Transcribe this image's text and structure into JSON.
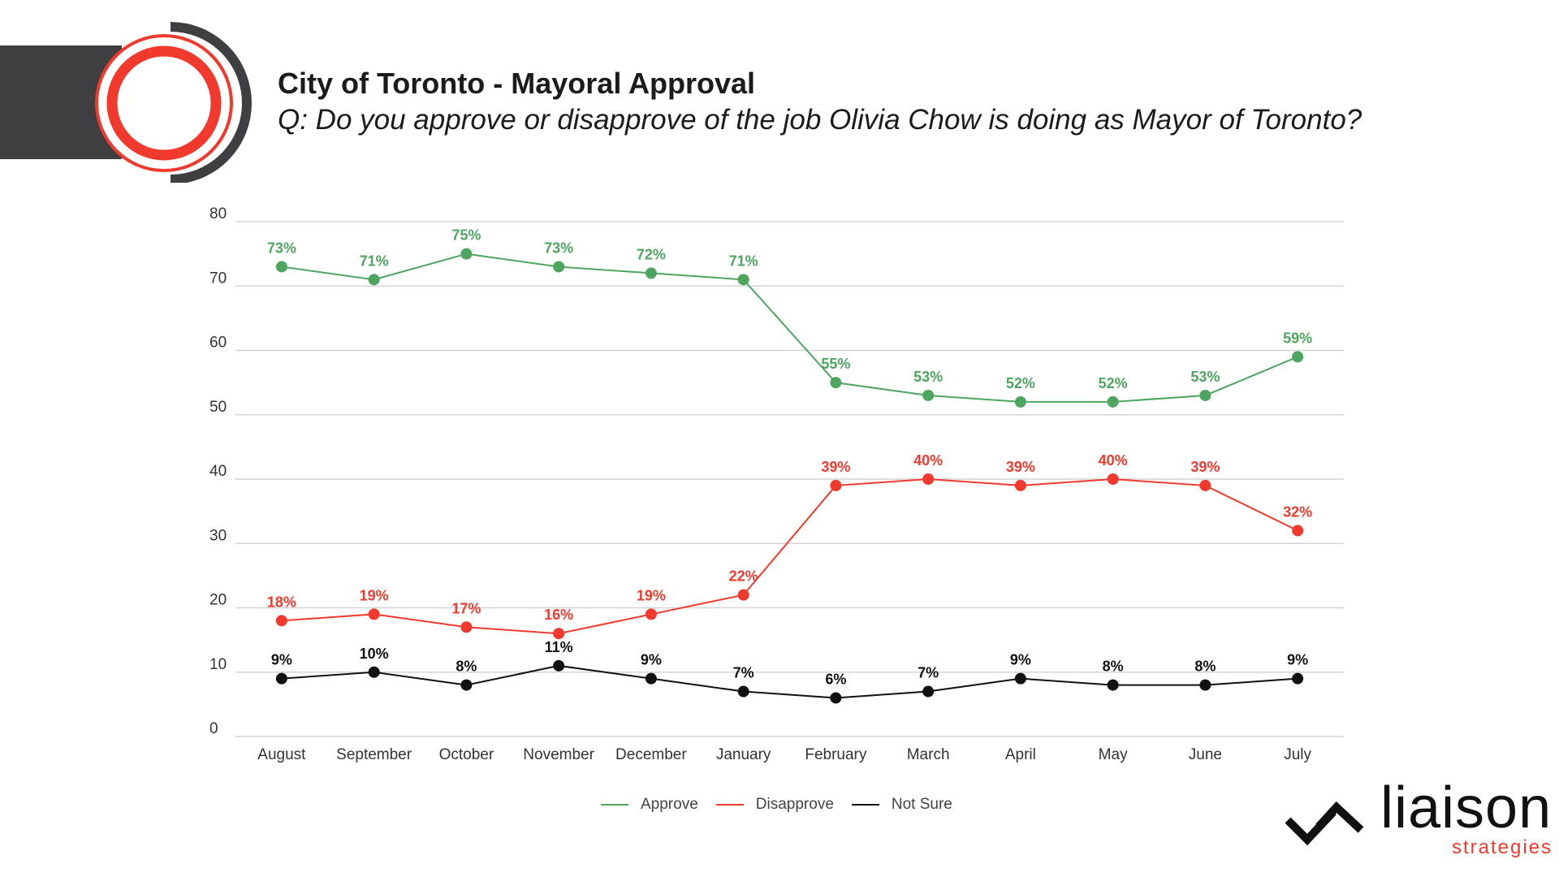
{
  "header": {
    "title": "City of Toronto - Mayoral Approval",
    "subtitle": "Q: Do you approve or disapprove of the job Olivia Chow is doing as Mayor of Toronto?"
  },
  "brand": {
    "name": "liaison",
    "sub": "strategies"
  },
  "colors": {
    "approve": "#4ea55f",
    "disapprove": "#f13a2d",
    "not_sure": "#111111",
    "grid": "#d4d4d4",
    "axis_text": "#333333"
  },
  "chart_data": {
    "type": "line",
    "categories": [
      "August",
      "September",
      "October",
      "November",
      "December",
      "January",
      "February",
      "March",
      "April",
      "May",
      "June",
      "July"
    ],
    "ylim": [
      0,
      80
    ],
    "yticks": [
      0,
      10,
      20,
      30,
      40,
      50,
      60,
      70,
      80
    ],
    "grid": true,
    "legend_position": "bottom",
    "series": [
      {
        "name": "Approve",
        "color": "#4ea55f",
        "values": [
          73,
          71,
          75,
          73,
          72,
          71,
          55,
          53,
          52,
          52,
          53,
          59
        ],
        "labels": [
          "73%",
          "71%",
          "75%",
          "73%",
          "72%",
          "71%",
          "55%",
          "53%",
          "52%",
          "52%",
          "53%",
          "59%"
        ]
      },
      {
        "name": "Disapprove",
        "color": "#f13a2d",
        "values": [
          18,
          19,
          17,
          16,
          19,
          22,
          39,
          40,
          39,
          40,
          39,
          32
        ],
        "labels": [
          "18%",
          "19%",
          "17%",
          "16%",
          "19%",
          "22%",
          "39%",
          "40%",
          "39%",
          "40%",
          "39%",
          "32%"
        ]
      },
      {
        "name": "Not Sure",
        "color": "#111111",
        "values": [
          9,
          10,
          8,
          11,
          9,
          7,
          6,
          7,
          9,
          8,
          8,
          9
        ],
        "labels": [
          "9%",
          "10%",
          "8%",
          "11%",
          "9%",
          "7%",
          "6%",
          "7%",
          "9%",
          "8%",
          "8%",
          "9%"
        ]
      }
    ]
  }
}
